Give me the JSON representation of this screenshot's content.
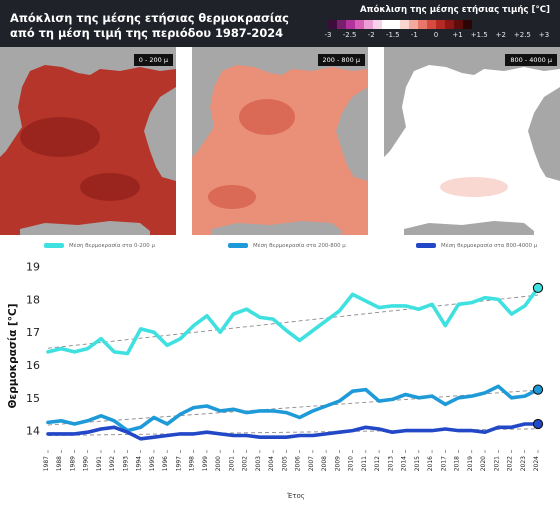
{
  "header": {
    "title_line1": "Απόκλιση της μέσης ετήσιας θερμοκρασίας",
    "title_line2": "από τη μέση τιμή της περιόδου 1987-2024",
    "colorbar_title": "Απόκλιση της μέσης ετήσιας τιμής [°C]",
    "colorbar_ticks": [
      "-3",
      "-2.5",
      "-2",
      "-1.5",
      "-1",
      "0",
      "+1",
      "+1.5",
      "+2",
      "+2.5",
      "+3"
    ],
    "colorbar_colors": [
      "#3a0d3a",
      "#7a1f6e",
      "#b2339b",
      "#d85fb8",
      "#ec9fd2",
      "#f6d1e8",
      "#ffffff",
      "#ffffff",
      "#f9d5cf",
      "#f3a99d",
      "#e8776a",
      "#d74a3f",
      "#b52a24",
      "#8c1714",
      "#5e0c0c",
      "#2b0404"
    ]
  },
  "maps": [
    {
      "depth_label": "0 - 200 μ",
      "fill_color": "#b5352a",
      "accent_color": "#8f1f1a"
    },
    {
      "depth_label": "200 - 800 μ",
      "fill_color": "#ea8f78",
      "accent_color": "#d35a47"
    },
    {
      "depth_label": "800 - 4000 μ",
      "fill_color": "#ffffff",
      "accent_color": "#f6c8bd"
    }
  ],
  "legend": [
    {
      "label": "Μέση θερμοκρασία στα 0-200 μ",
      "color": "#3ee0e0"
    },
    {
      "label": "Μέση θερμοκρασία στα 200-800 μ",
      "color": "#1f9ad8"
    },
    {
      "label": "Μέση θερμοκρασία στα 800-4000 μ",
      "color": "#2248c8"
    }
  ],
  "colors": {
    "land": "#a7a7a7",
    "trend_line": "#8a8a8a"
  },
  "chart_data": {
    "type": "line",
    "xlabel": "Έτος",
    "ylabel": "Θερμοκρασία [°C]",
    "ylim": [
      13.5,
      19.2
    ],
    "yticks": [
      14,
      15,
      16,
      17,
      18,
      19
    ],
    "x": [
      1987,
      1988,
      1989,
      1990,
      1991,
      1992,
      1993,
      1994,
      1995,
      1996,
      1997,
      1998,
      1999,
      2000,
      2001,
      2002,
      2003,
      2004,
      2005,
      2006,
      2007,
      2008,
      2009,
      2010,
      2011,
      2012,
      2013,
      2014,
      2015,
      2016,
      2017,
      2018,
      2019,
      2020,
      2021,
      2022,
      2023,
      2024
    ],
    "grid": false,
    "series": [
      {
        "values": [
          16.4,
          16.5,
          16.4,
          16.5,
          16.8,
          16.4,
          16.35,
          17.1,
          17.0,
          16.6,
          16.8,
          17.2,
          17.5,
          17.0,
          17.55,
          17.7,
          17.45,
          17.4,
          17.05,
          16.75,
          17.05,
          17.35,
          17.65,
          18.15,
          17.95,
          17.75,
          17.8,
          17.8,
          17.7,
          17.85,
          17.2,
          17.85,
          17.9,
          18.05,
          18.0,
          17.55,
          17.8,
          18.35
        ],
        "color": "#3ee0e0"
      },
      {
        "values": [
          14.25,
          14.3,
          14.2,
          14.3,
          14.45,
          14.3,
          14.0,
          14.1,
          14.4,
          14.2,
          14.5,
          14.7,
          14.75,
          14.6,
          14.65,
          14.55,
          14.6,
          14.6,
          14.55,
          14.4,
          14.6,
          14.75,
          14.9,
          15.2,
          15.25,
          14.9,
          14.95,
          15.1,
          15.0,
          15.05,
          14.8,
          15.0,
          15.05,
          15.15,
          15.35,
          15.0,
          15.05,
          15.25
        ],
        "color": "#1f9ad8"
      },
      {
        "values": [
          13.9,
          13.9,
          13.9,
          13.95,
          14.05,
          14.1,
          13.95,
          13.75,
          13.8,
          13.85,
          13.9,
          13.9,
          13.95,
          13.9,
          13.85,
          13.85,
          13.8,
          13.8,
          13.8,
          13.85,
          13.85,
          13.9,
          13.95,
          14.0,
          14.1,
          14.05,
          13.95,
          14.0,
          14.0,
          14.0,
          14.05,
          14.0,
          14.0,
          13.95,
          14.1,
          14.1,
          14.2,
          14.2
        ],
        "color": "#2248c8"
      }
    ]
  }
}
